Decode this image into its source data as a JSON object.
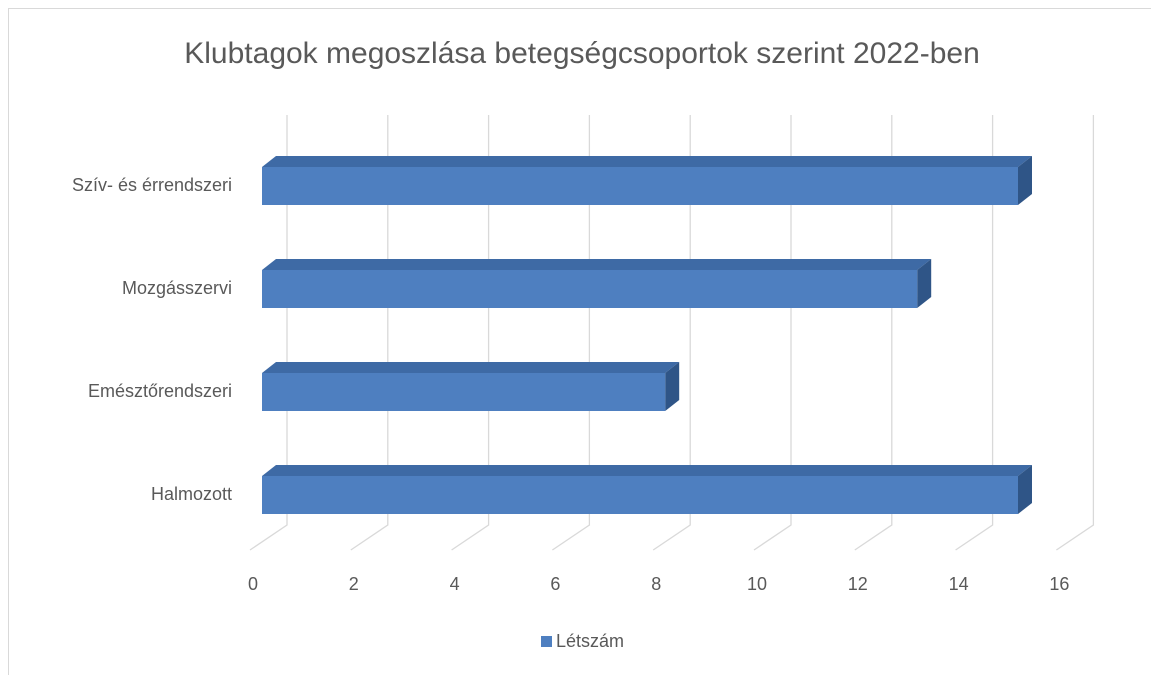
{
  "chart_data": {
    "type": "bar",
    "orientation": "horizontal",
    "three_d": true,
    "title": "Klubtagok megoszlása betegségcsoportok szerint 2022-ben",
    "categories": [
      "Szív- és érrendszeri",
      "Mozgásszervi",
      "Emésztőrendszeri",
      "Halmozott"
    ],
    "series": [
      {
        "name": "Létszám",
        "color": "#4e7fc0",
        "values": [
          15,
          13,
          8,
          15
        ]
      }
    ],
    "xlim": [
      0,
      16
    ],
    "xticks": [
      0,
      2,
      4,
      6,
      8,
      10,
      12,
      14,
      16
    ],
    "grid": true,
    "legend": "bottom"
  }
}
